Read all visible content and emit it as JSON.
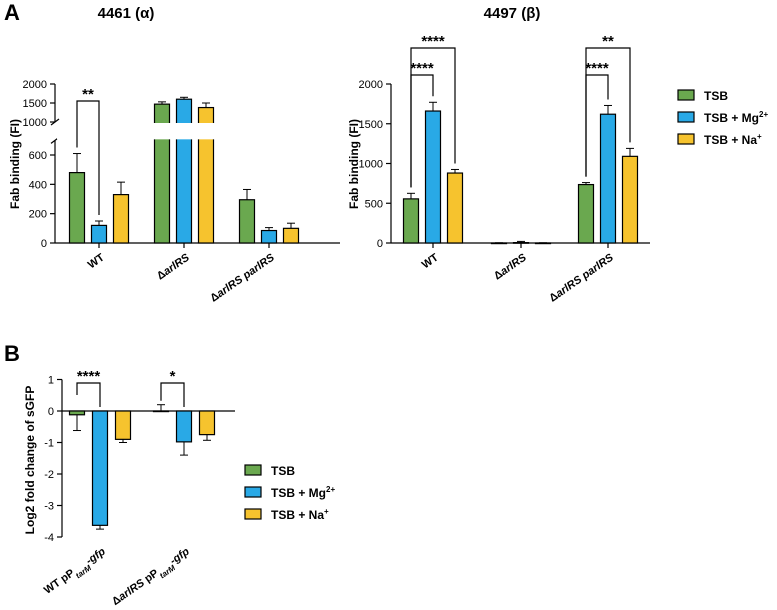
{
  "panels": {
    "a": {
      "label": "A"
    },
    "b": {
      "label": "B"
    }
  },
  "legend": {
    "entries": [
      "TSB",
      "TSB + Mg",
      "TSB + Na"
    ],
    "superscripts": [
      "",
      "2+",
      "+"
    ]
  },
  "colors": {
    "TSB": "#6aa84f",
    "Mg": "#29a9e6",
    "Na": "#f6c32e"
  },
  "chart_data": [
    {
      "type": "bar",
      "title": "4461 (α)",
      "ylabel": "Fab binding (FI)",
      "axis_break": {
        "lower_range": [
          0,
          700
        ],
        "upper_range": [
          1000,
          2000
        ]
      },
      "yticks_lower": [
        0,
        200,
        400,
        600
      ],
      "yticks_upper": [
        1000,
        1500,
        2000
      ],
      "categories": [
        "WT",
        "ΔarlRS",
        "ΔarlRS parlRS"
      ],
      "category_parts": [
        [
          {
            "t": "WT",
            "i": false
          }
        ],
        [
          {
            "t": "Δ",
            "i": false
          },
          {
            "t": "arlRS",
            "i": true
          }
        ],
        [
          {
            "t": "Δ",
            "i": false
          },
          {
            "t": "arlRS parlRS",
            "i": true
          }
        ]
      ],
      "series": [
        {
          "name": "TSB",
          "values": [
            480,
            1470,
            295
          ],
          "errors": [
            130,
            60,
            70
          ]
        },
        {
          "name": "TSB + Mg2+",
          "values": [
            120,
            1600,
            85
          ],
          "errors": [
            30,
            50,
            20
          ]
        },
        {
          "name": "TSB + Na+",
          "values": [
            330,
            1380,
            100
          ],
          "errors": [
            85,
            120,
            35
          ]
        }
      ],
      "significance": [
        {
          "group": 0,
          "from": 0,
          "to": 1,
          "label": "**"
        }
      ]
    },
    {
      "type": "bar",
      "title": "4497 (β)",
      "ylabel": "Fab binding (FI)",
      "ylim": [
        0,
        2000
      ],
      "yticks": [
        0,
        500,
        1000,
        1500,
        2000
      ],
      "categories": [
        "WT",
        "ΔarlRS",
        "ΔarlRS parlRS"
      ],
      "category_parts": [
        [
          {
            "t": "WT",
            "i": false
          }
        ],
        [
          {
            "t": "Δ",
            "i": false
          },
          {
            "t": "arlRS",
            "i": true
          }
        ],
        [
          {
            "t": "Δ",
            "i": false
          },
          {
            "t": "arlRS parlRS",
            "i": true
          }
        ]
      ],
      "series": [
        {
          "name": "TSB",
          "values": [
            555,
            0,
            735
          ],
          "errors": [
            70,
            3,
            25
          ]
        },
        {
          "name": "TSB + Mg2+",
          "values": [
            1660,
            5,
            1620
          ],
          "errors": [
            110,
            15,
            110
          ]
        },
        {
          "name": "TSB + Na+",
          "values": [
            880,
            0,
            1090
          ],
          "errors": [
            45,
            3,
            100
          ]
        }
      ],
      "significance": [
        {
          "group": 0,
          "from": 0,
          "to": 1,
          "label": "****"
        },
        {
          "group": 0,
          "from": 0,
          "to": 2,
          "label": "****"
        },
        {
          "group": 2,
          "from": 0,
          "to": 1,
          "label": "****"
        },
        {
          "group": 2,
          "from": 0,
          "to": 2,
          "label": "**"
        }
      ]
    },
    {
      "type": "bar",
      "title": "",
      "ylabel": "Log2 fold change of sGFP",
      "ylim": [
        -4,
        1
      ],
      "yticks": [
        -4,
        -3,
        -2,
        -1,
        0,
        1
      ],
      "categories": [
        "WT pPtarM-gfp",
        "ΔarlRS pPtarM-gfp"
      ],
      "category_parts": [
        [
          {
            "t": "WT pP",
            "i": false
          },
          {
            "t": "tarM",
            "i": true,
            "sub": true
          },
          {
            "t": "-gfp",
            "i": true
          }
        ],
        [
          {
            "t": "Δ",
            "i": false
          },
          {
            "t": "arlRS",
            "i": true
          },
          {
            "t": " pP",
            "i": false
          },
          {
            "t": "tarM",
            "i": true,
            "sub": true
          },
          {
            "t": "-gfp",
            "i": true
          }
        ]
      ],
      "series": [
        {
          "name": "TSB",
          "values": [
            -0.12,
            0.0
          ],
          "errors": [
            0.5,
            0.2
          ]
        },
        {
          "name": "TSB + Mg2+",
          "values": [
            -3.63,
            -0.98
          ],
          "errors": [
            0.12,
            0.42
          ]
        },
        {
          "name": "TSB + Na+",
          "values": [
            -0.9,
            -0.75
          ],
          "errors": [
            0.1,
            0.18
          ]
        }
      ],
      "significance": [
        {
          "group": 0,
          "from": 0,
          "to": 1,
          "label": "****"
        },
        {
          "group": 1,
          "from": 0,
          "to": 1,
          "label": "*"
        }
      ]
    }
  ]
}
